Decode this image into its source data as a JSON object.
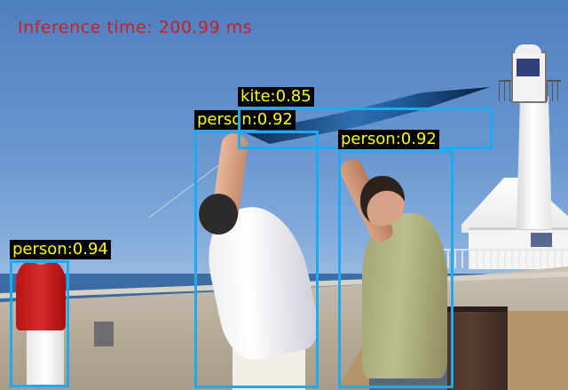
{
  "overlay": {
    "inference_text": "Inference time: 200.99 ms",
    "text_color": "#d21d1d"
  },
  "detections": [
    {
      "label": "person:0.94",
      "class": "person",
      "score": 0.94
    },
    {
      "label": "person:0.92",
      "class": "person",
      "score": 0.92
    },
    {
      "label": "kite:0.85",
      "class": "kite",
      "score": 0.85
    },
    {
      "label": "person:0.92",
      "class": "person",
      "score": 0.92
    }
  ],
  "style": {
    "box_color": "#1eaaf1",
    "label_bg": "#000000",
    "label_text": "#ffff00"
  }
}
